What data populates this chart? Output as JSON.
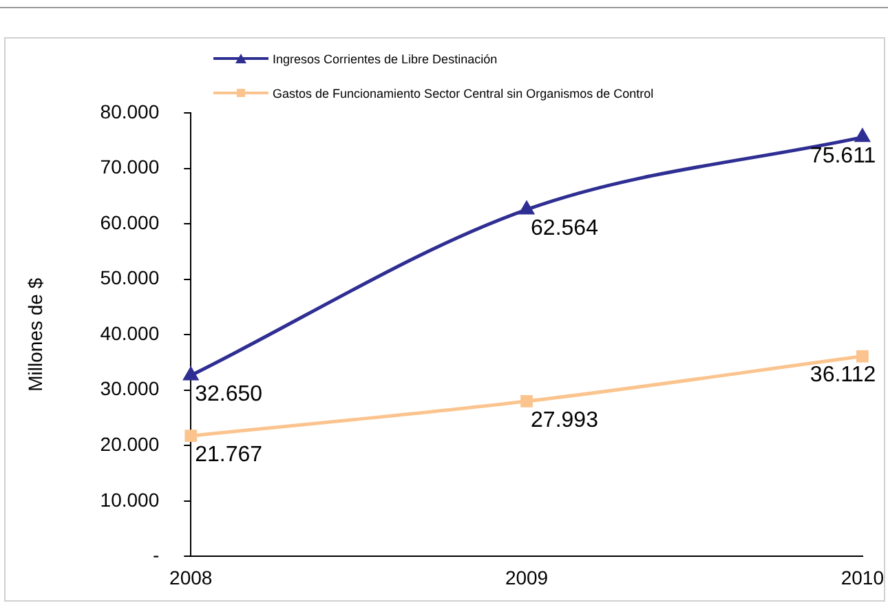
{
  "chart_data": {
    "type": "line",
    "ylabel": "Millones de $",
    "categories": [
      "2008",
      "2009",
      "2010"
    ],
    "series": [
      {
        "name": "Ingresos Corrientes de Libre Destinación",
        "color": "#2e2e93",
        "marker": "triangle",
        "values": [
          32650,
          62564,
          75611
        ],
        "value_labels": [
          "32.650",
          "62.564",
          "75.611"
        ]
      },
      {
        "name": "Gastos de Funcionamiento Sector Central sin Organismos de Control",
        "color": "#fbc48e",
        "marker": "square",
        "values": [
          21767,
          27993,
          36112
        ],
        "value_labels": [
          "21.767",
          "27.993",
          "36.112"
        ]
      }
    ],
    "ylim": [
      0,
      80000
    ],
    "yticks": [
      {
        "value": 0,
        "label": "-"
      },
      {
        "value": 10000,
        "label": "10.000"
      },
      {
        "value": 20000,
        "label": "20.000"
      },
      {
        "value": 30000,
        "label": "30.000"
      },
      {
        "value": 40000,
        "label": "40.000"
      },
      {
        "value": 50000,
        "label": "50.000"
      },
      {
        "value": 60000,
        "label": "60.000"
      },
      {
        "value": 70000,
        "label": "70.000"
      },
      {
        "value": 80000,
        "label": "80.000"
      }
    ],
    "grid": false,
    "legend": "top"
  }
}
